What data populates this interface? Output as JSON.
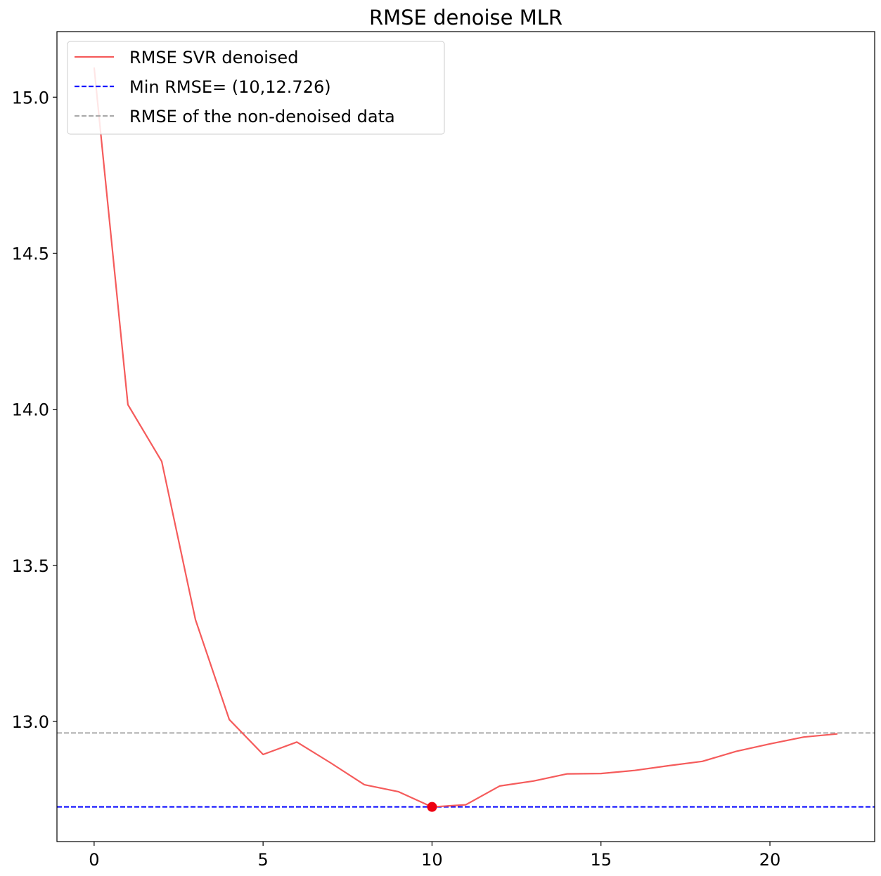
{
  "chart_data": {
    "type": "line",
    "title": "RMSE denoise MLR",
    "xlabel": "",
    "ylabel": "",
    "xlim": [
      -1.1,
      23.1
    ],
    "ylim": [
      12.615,
      15.21
    ],
    "xticks": [
      0,
      5,
      10,
      15,
      20
    ],
    "xtick_labels": [
      "0",
      "5",
      "10",
      "15",
      "20"
    ],
    "yticks": [
      13.0,
      13.5,
      14.0,
      14.5,
      15.0
    ],
    "ytick_labels": [
      "13.0",
      "13.5",
      "14.0",
      "14.5",
      "15.0"
    ],
    "grid": false,
    "legend_position": "top-left",
    "series": [
      {
        "name": "RMSE SVR denoised",
        "color": "#f55b5b",
        "style": "solid",
        "x": [
          0,
          1,
          2,
          3,
          4,
          5,
          6,
          7,
          8,
          9,
          10,
          11,
          12,
          13,
          14,
          15,
          16,
          17,
          18,
          19,
          20,
          21,
          22
        ],
        "y": [
          15.095,
          14.015,
          13.833,
          13.326,
          13.006,
          12.894,
          12.934,
          12.867,
          12.797,
          12.775,
          12.726,
          12.733,
          12.793,
          12.809,
          12.832,
          12.833,
          12.843,
          12.858,
          12.872,
          12.904,
          12.928,
          12.95,
          12.96
        ]
      }
    ],
    "reference_lines": [
      {
        "name": "Min RMSE= (10,12.726)",
        "y": 12.726,
        "color": "#0000ff",
        "style": "dashed"
      },
      {
        "name": "RMSE of the non-denoised data",
        "y": 12.963,
        "color": "#aaaaaa",
        "style": "dashed"
      }
    ],
    "marker": {
      "x": 10,
      "y": 12.726,
      "color": "#ee0011"
    }
  }
}
